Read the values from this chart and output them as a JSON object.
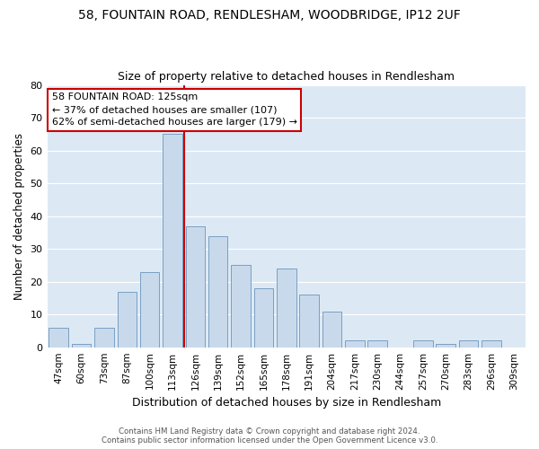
{
  "title1": "58, FOUNTAIN ROAD, RENDLESHAM, WOODBRIDGE, IP12 2UF",
  "title2": "Size of property relative to detached houses in Rendlesham",
  "xlabel": "Distribution of detached houses by size in Rendlesham",
  "ylabel": "Number of detached properties",
  "categories": [
    "47sqm",
    "60sqm",
    "73sqm",
    "87sqm",
    "100sqm",
    "113sqm",
    "126sqm",
    "139sqm",
    "152sqm",
    "165sqm",
    "178sqm",
    "191sqm",
    "204sqm",
    "217sqm",
    "230sqm",
    "244sqm",
    "257sqm",
    "270sqm",
    "283sqm",
    "296sqm",
    "309sqm"
  ],
  "values": [
    6,
    1,
    6,
    17,
    23,
    65,
    37,
    34,
    25,
    18,
    24,
    16,
    11,
    2,
    2,
    0,
    2,
    1,
    2,
    2,
    0
  ],
  "bar_color": "#c9d9ec",
  "bar_edge_color": "#7a9fc2",
  "red_line_index": 6,
  "highlight_line_color": "#cc0000",
  "annotation_text": "58 FOUNTAIN ROAD: 125sqm\n← 37% of detached houses are smaller (107)\n62% of semi-detached houses are larger (179) →",
  "annotation_box_color": "#ffffff",
  "annotation_box_edge_color": "#cc0000",
  "ylim": [
    0,
    80
  ],
  "yticks": [
    0,
    10,
    20,
    30,
    40,
    50,
    60,
    70,
    80
  ],
  "footer1": "Contains HM Land Registry data © Crown copyright and database right 2024.",
  "footer2": "Contains public sector information licensed under the Open Government Licence v3.0.",
  "fig_bg_color": "#ffffff",
  "plot_bg_color": "#dce9f5"
}
